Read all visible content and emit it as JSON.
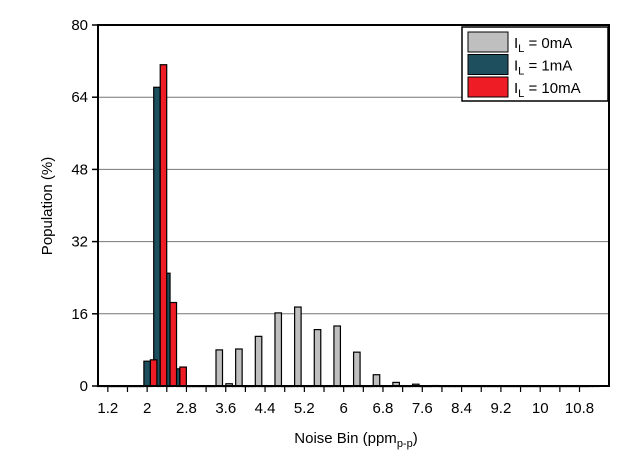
{
  "chart_data": {
    "type": "bar",
    "xlabel_main": "Noise Bin (ppm",
    "xlabel_sub": "p-p",
    "xlabel_close": ")",
    "ylabel": "Population (%)",
    "ylim": [
      0,
      80
    ],
    "yticks": [
      "0",
      "16",
      "32",
      "48",
      "64",
      "80"
    ],
    "xlim": [
      1,
      11.4
    ],
    "xticks": [
      "1.2",
      "2",
      "2.8",
      "3.6",
      "4.4",
      "5.2",
      "6",
      "6.8",
      "7.6",
      "8.4",
      "9.2",
      "10",
      "10.8"
    ],
    "x": [
      1.2,
      1.4,
      1.6,
      1.8,
      2.0,
      2.2,
      2.4,
      2.6,
      2.8,
      3.0,
      3.2,
      3.4,
      3.6,
      3.8,
      4.0,
      4.2,
      4.4,
      4.6,
      4.8,
      5.0,
      5.2,
      5.4,
      5.6,
      5.8,
      6.0,
      6.2,
      6.4,
      6.6,
      6.8,
      7.0,
      7.2,
      7.4,
      7.6,
      7.8,
      8.0,
      8.2,
      8.4,
      8.6,
      8.8,
      9.0,
      9.2,
      9.4,
      9.6,
      9.8,
      10.0,
      10.2,
      10.4,
      10.6,
      10.8,
      11.0
    ],
    "grid": true,
    "legend_position": "top-right",
    "series": [
      {
        "name_main": "I",
        "name_sub": "L",
        "name_rest": " = 0mA",
        "color": "#bfbfbf",
        "values": [
          0,
          0,
          0,
          0,
          0,
          0,
          0,
          0,
          0,
          0,
          0,
          0,
          8,
          0.5,
          8.2,
          0,
          11,
          0,
          16.2,
          0,
          17.5,
          0,
          12.5,
          0,
          13.3,
          0,
          7.5,
          0,
          2.5,
          0,
          0.8,
          0,
          0.4,
          0,
          0.1,
          0,
          0,
          0,
          0,
          0,
          0,
          0,
          0,
          0,
          0,
          0,
          0,
          0,
          0,
          0
        ]
      },
      {
        "name_main": "I",
        "name_sub": "L",
        "name_rest": " = 1mA",
        "color": "#1e4f5e",
        "values": [
          0,
          0,
          0,
          0,
          5.5,
          66.2,
          25,
          3.8,
          0,
          0,
          0,
          0,
          0,
          0,
          0,
          0,
          0,
          0,
          0,
          0,
          0,
          0,
          0,
          0,
          0,
          0,
          0,
          0,
          0,
          0,
          0,
          0,
          0,
          0,
          0,
          0,
          0,
          0,
          0,
          0,
          0,
          0,
          0,
          0,
          0,
          0,
          0,
          0,
          0,
          0
        ]
      },
      {
        "name_main": "I",
        "name_sub": "L",
        "name_rest": " = 10mA",
        "color": "#ee1c25",
        "values": [
          0,
          0,
          0,
          0,
          5.8,
          71.2,
          18.5,
          4.2,
          0,
          0,
          0,
          0,
          0,
          0,
          0,
          0,
          0,
          0,
          0,
          0,
          0,
          0,
          0,
          0,
          0,
          0,
          0,
          0,
          0,
          0,
          0,
          0,
          0,
          0,
          0,
          0,
          0,
          0,
          0,
          0,
          0,
          0,
          0,
          0,
          0,
          0,
          0,
          0,
          0,
          0
        ]
      }
    ]
  }
}
